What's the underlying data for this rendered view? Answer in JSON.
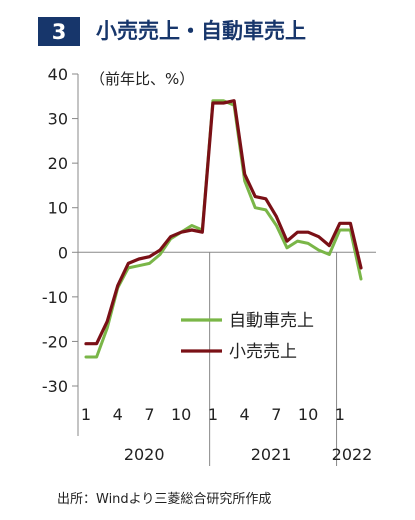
{
  "header": {
    "number": "3",
    "title": "小売売上・自動車売上"
  },
  "source": "出所：Windより三菱総合研究所作成",
  "chart_data": {
    "type": "line",
    "unit_label": "（前年比、%）",
    "ylim": [
      -30,
      40
    ],
    "yticks": [
      40,
      30,
      20,
      10,
      0,
      -10,
      -20,
      -30
    ],
    "x_tick_labels": [
      "1",
      "4",
      "7",
      "10",
      "1",
      "4",
      "7",
      "10",
      "1"
    ],
    "year_labels": [
      "2020",
      "2021",
      "2022"
    ],
    "x": [
      "2020-01",
      "2020-02",
      "2020-03",
      "2020-04",
      "2020-05",
      "2020-06",
      "2020-07",
      "2020-08",
      "2020-09",
      "2020-10",
      "2020-11",
      "2020-12",
      "2021-01",
      "2021-02",
      "2021-03",
      "2021-04",
      "2021-05",
      "2021-06",
      "2021-07",
      "2021-08",
      "2021-09",
      "2021-10",
      "2021-11",
      "2021-12",
      "2022-01",
      "2022-02",
      "2022-03"
    ],
    "series": [
      {
        "name": "自動車売上",
        "color": "#7ab648",
        "values": [
          -23.5,
          -23.5,
          -17,
          -8,
          -3.5,
          -3,
          -2.5,
          -0.5,
          3,
          4.5,
          6,
          5,
          34,
          34,
          33,
          16,
          10,
          9.5,
          6,
          1,
          2.5,
          2,
          0.5,
          -0.5,
          5,
          5,
          -6
        ]
      },
      {
        "name": "小売売上",
        "color": "#7a1016",
        "values": [
          -20.5,
          -20.5,
          -15.5,
          -7.5,
          -2.5,
          -1.5,
          -1,
          0.5,
          3.5,
          4.5,
          5,
          4.5,
          33.5,
          33.5,
          34,
          17.5,
          12.5,
          12,
          8,
          2.5,
          4.5,
          4.5,
          3.5,
          1.5,
          6.5,
          6.5,
          -3.5
        ]
      }
    ],
    "legend_position": "center-right"
  }
}
